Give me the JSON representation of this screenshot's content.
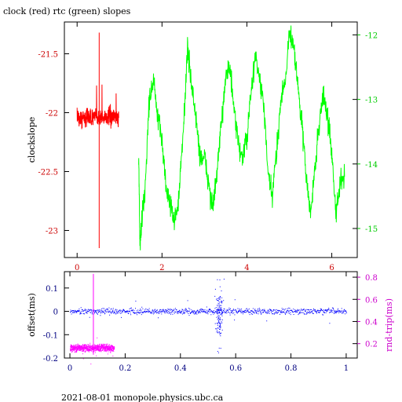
{
  "chart_data": [
    {
      "type": "line",
      "title": "clock (red) rtc (green) slopes",
      "ylabel": "clockslope",
      "xlim": [
        -0.3,
        6.6
      ],
      "ylim_left": [
        -23.23,
        -21.23
      ],
      "ylim_right": [
        -15.45,
        -11.8
      ],
      "x_ticks": [
        "0",
        "2",
        "4",
        "6"
      ],
      "y_ticks_left": [
        "-21.5",
        "-22",
        "-22.5",
        "-23"
      ],
      "y_ticks_right": [
        "-12",
        "-13",
        "-14",
        "-15"
      ],
      "colors": {
        "axis_left": "#cc0000",
        "axis_right": "#00cc00",
        "x_ticks": "#cc0000",
        "frame": "#000000"
      },
      "series": [
        {
          "color": "#ff0000",
          "axis": "left",
          "x_range": [
            0,
            0.98
          ],
          "center": -22.04,
          "noise": 0.04,
          "spike": {
            "x": 0.52,
            "low": -23.15,
            "high": -21.32
          }
        },
        {
          "color": "#00ff00",
          "axis": "right",
          "x": [
            1.45,
            1.48,
            1.52,
            1.6,
            1.7,
            1.8,
            1.9,
            2.0,
            2.1,
            2.2,
            2.3,
            2.4,
            2.5,
            2.6,
            2.7,
            2.8,
            2.9,
            3.0,
            3.1,
            3.2,
            3.3,
            3.4,
            3.5,
            3.6,
            3.7,
            3.8,
            3.9,
            4.0,
            4.1,
            4.2,
            4.3,
            4.4,
            4.5,
            4.6,
            4.7,
            4.8,
            4.9,
            5.0,
            5.1,
            5.2,
            5.3,
            5.4,
            5.5,
            5.6,
            5.7,
            5.8,
            5.9,
            6.0,
            6.1,
            6.2,
            6.3
          ],
          "values": [
            -13.8,
            -15.3,
            -14.9,
            -14.4,
            -13.0,
            -12.7,
            -13.3,
            -13.6,
            -14.4,
            -14.6,
            -14.9,
            -14.5,
            -13.5,
            -12.2,
            -12.8,
            -13.3,
            -13.9,
            -13.9,
            -14.3,
            -14.7,
            -14.1,
            -13.4,
            -12.6,
            -12.5,
            -13.2,
            -13.7,
            -13.9,
            -13.6,
            -12.9,
            -12.3,
            -12.7,
            -13.1,
            -14.2,
            -14.5,
            -13.8,
            -13.0,
            -12.7,
            -12.0,
            -12.1,
            -12.8,
            -13.4,
            -14.2,
            -14.8,
            -14.1,
            -13.4,
            -12.9,
            -13.3,
            -13.8,
            -14.8,
            -14.3,
            -14.2
          ]
        }
      ]
    },
    {
      "type": "scatter",
      "ylabel": "offset(ms)",
      "ylabel_right": "rnd-trip(ms)",
      "xlim": [
        -0.02,
        1.04
      ],
      "ylim_left": [
        -0.2,
        0.17
      ],
      "ylim_right": [
        0.07,
        0.85
      ],
      "x_ticks": [
        "0",
        "0.2",
        "0.4",
        "0.6",
        "0.8",
        "1"
      ],
      "y_ticks_left": [
        "0.1",
        "0",
        "-0.1",
        "-0.2"
      ],
      "y_ticks_right": [
        "0.8",
        "0.6",
        "0.4",
        "0.2"
      ],
      "colors": {
        "axis_left": "#000080",
        "axis_right": "#cc00cc",
        "x_ticks": "#000080",
        "frame": "#000000"
      },
      "series": [
        {
          "color": "#0000ff",
          "axis": "left",
          "x_range": [
            0,
            1.0
          ],
          "center": 0.0,
          "noise": 0.006,
          "scatter_x": 0.54,
          "scatter_range": [
            -0.19,
            0.14
          ]
        },
        {
          "color": "#ff00ff",
          "axis": "right",
          "x_range": [
            0,
            0.16
          ],
          "center": 0.16,
          "noise": 0.015,
          "spike": {
            "x": 0.085,
            "low": 0.1,
            "high": 0.83
          }
        }
      ]
    }
  ],
  "footer": "2021-08-01 monopole.physics.ubc.ca"
}
